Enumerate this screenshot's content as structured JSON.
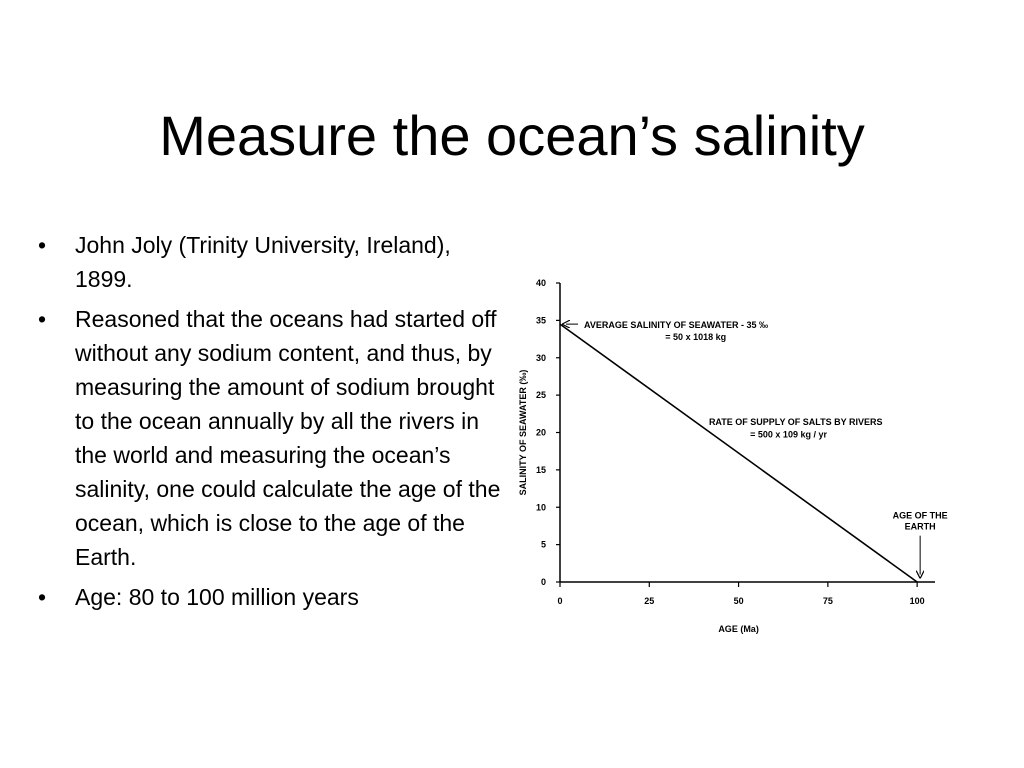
{
  "slide": {
    "title": "Measure the ocean’s salinity",
    "bullet_marker": "•",
    "bullets": [
      "John Joly (Trinity University, Ireland), 1899.",
      "Reasoned that the oceans had started off without any sodium content, and thus, by measuring the amount of sodium brought to the ocean annually by all the rivers in the world and measuring the ocean’s salinity, one could calculate the age of the ocean, which is close to the age of the Earth.",
      "Age: 80 to 100 million years"
    ]
  },
  "chart_data": {
    "type": "line",
    "title": "",
    "xlabel": "AGE (Ma)",
    "ylabel": "SALINITY OF SEAWATER (‰)",
    "xlim": [
      0,
      105
    ],
    "ylim": [
      0,
      40
    ],
    "xticks": [
      0,
      25,
      50,
      75,
      100
    ],
    "yticks": [
      0,
      5,
      10,
      15,
      20,
      25,
      30,
      35,
      40
    ],
    "grid": false,
    "series": [
      {
        "x": [
          0,
          100
        ],
        "y": [
          34.5,
          0
        ]
      }
    ],
    "annotations": {
      "average_salinity": {
        "line1": "AVERAGE SALINITY OF SEAWATER - 35 ‰",
        "line2": "= 50 x 1018 kg",
        "x": 0,
        "y": 34.5
      },
      "rate_of_supply": {
        "line1": "RATE OF SUPPLY OF SALTS BY RIVERS",
        "line2": "= 500 x 109 kg / yr"
      },
      "age_of_earth": {
        "line1": "AGE OF THE",
        "line2": "EARTH",
        "x": 100,
        "y": 0
      }
    }
  }
}
